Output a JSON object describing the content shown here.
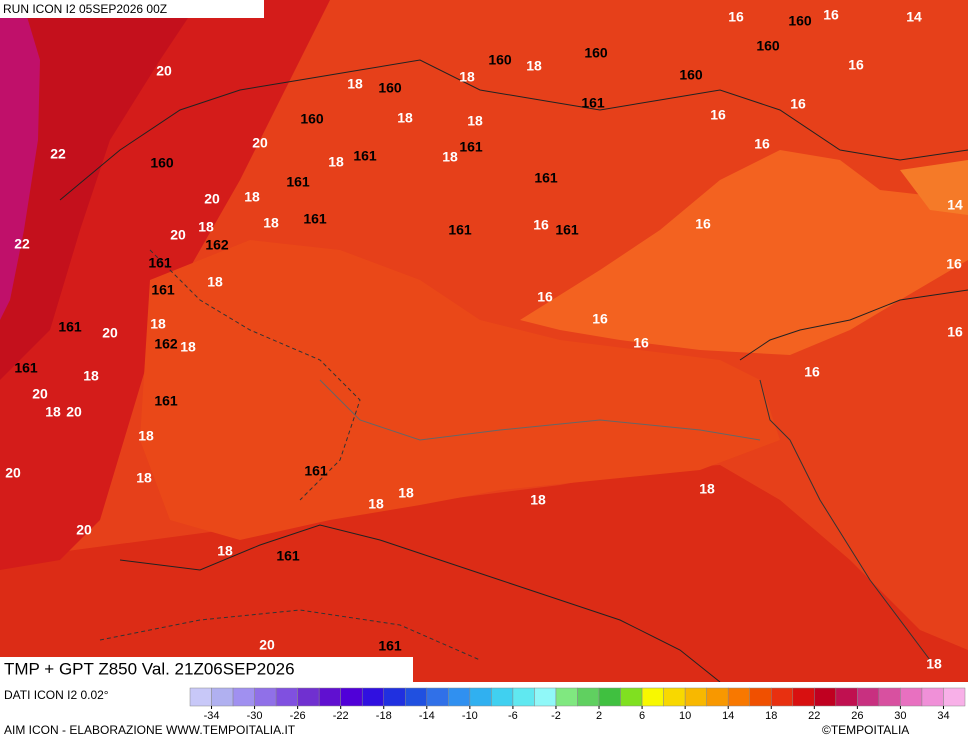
{
  "header": {
    "run": "RUN ICON I2 05SEP2026 00Z"
  },
  "title": "TMP + GPT Z850 Val. 21Z06SEP2026",
  "source": "DATI ICON I2 0.02°",
  "credit": "AIM ICON - ELABORAZIONE WWW.TEMPOITALIA.IT",
  "copyright": "©TEMPOITALIA",
  "map_labels": [
    "16",
    "160",
    "16",
    "14",
    "160",
    "16",
    "20",
    "18",
    "160",
    "18",
    "160",
    "18",
    "160",
    "160",
    "161",
    "16",
    "16",
    "160",
    "20",
    "18",
    "18",
    "16",
    "22",
    "160",
    "18",
    "161",
    "18",
    "161",
    "161",
    "161",
    "20",
    "18",
    "14",
    "18",
    "20",
    "18",
    "161",
    "162",
    "161",
    "16",
    "161",
    "16",
    "22",
    "161",
    "18",
    "161",
    "16",
    "16",
    "18",
    "161",
    "20",
    "16",
    "162",
    "18",
    "16",
    "16",
    "161",
    "18",
    "16",
    "20",
    "161",
    "18",
    "20",
    "18",
    "161",
    "20",
    "18",
    "18",
    "18",
    "18",
    "18",
    "20",
    "18",
    "161",
    "20",
    "161",
    "18"
  ],
  "colorbar": {
    "xlim": [
      -36,
      36
    ],
    "colors": [
      "#c8c8f8",
      "#b0b0f0",
      "#a090f0",
      "#9070e8",
      "#8050e0",
      "#7030d0",
      "#6010d0",
      "#5000d8",
      "#3010e0",
      "#2030e0",
      "#2050e0",
      "#3070e8",
      "#3090f0",
      "#30b0f0",
      "#40d0f0",
      "#60e8f0",
      "#90f8f8",
      "#80e880",
      "#60d060",
      "#40c040",
      "#80e020",
      "#f8f800",
      "#f8d800",
      "#f8b800",
      "#f89800",
      "#f87800",
      "#f05000",
      "#e83010",
      "#d81010",
      "#c00020",
      "#c01050",
      "#c83080",
      "#d850a0",
      "#e870c0",
      "#f090d8",
      "#f8b0e8"
    ],
    "ticks": [
      -34,
      -30,
      -26,
      -22,
      -18,
      -14,
      -10,
      -6,
      -2,
      2,
      6,
      10,
      14,
      18,
      22,
      26,
      30,
      34
    ]
  }
}
